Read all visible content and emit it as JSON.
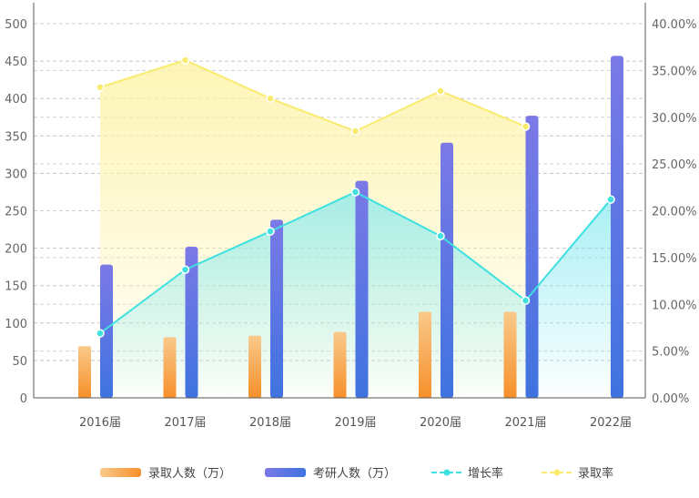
{
  "chart_data": {
    "type": "bar",
    "categories": [
      "2016届",
      "2017届",
      "2018届",
      "2019届",
      "2020届",
      "2021届",
      "2022届"
    ],
    "series": [
      {
        "name": "录取人数（万）",
        "type": "bar",
        "axis": "left",
        "values": [
          69,
          81,
          83,
          88,
          115,
          115,
          null
        ]
      },
      {
        "name": "考研人数（万）",
        "type": "bar",
        "axis": "left",
        "values": [
          178,
          202,
          238,
          290,
          341,
          377,
          457
        ]
      },
      {
        "name": "增长率",
        "type": "line",
        "axis": "right",
        "values": [
          0.069,
          0.137,
          0.178,
          0.22,
          0.173,
          0.104,
          0.212
        ]
      },
      {
        "name": "录取率",
        "type": "line",
        "axis": "right",
        "values": [
          0.332,
          0.361,
          0.32,
          0.285,
          0.328,
          0.29,
          null
        ]
      }
    ],
    "left_axis": {
      "ylim": [
        0,
        500
      ],
      "ticks": [
        "0",
        "50",
        "100",
        "150",
        "200",
        "250",
        "300",
        "350",
        "400",
        "450",
        "500"
      ]
    },
    "right_axis": {
      "ylim": [
        0,
        0.4
      ],
      "ticks": [
        "0.00%",
        "5.00%",
        "10.00%",
        "15.00%",
        "20.00%",
        "25.00%",
        "30.00%",
        "35.00%",
        "40.00%"
      ]
    },
    "grid": true,
    "legend_position": "bottom",
    "colors": {
      "luqu_top": "#F9C98A",
      "luqu_bottom": "#F7902B",
      "kaoyan_top": "#7B79E6",
      "kaoyan_bottom": "#3F73E0",
      "growth_line": "#3FE0E0",
      "growth_fill": "#7FE8F0",
      "rate_line": "#F9EB6E",
      "rate_fill": "#FDF3A8"
    }
  }
}
